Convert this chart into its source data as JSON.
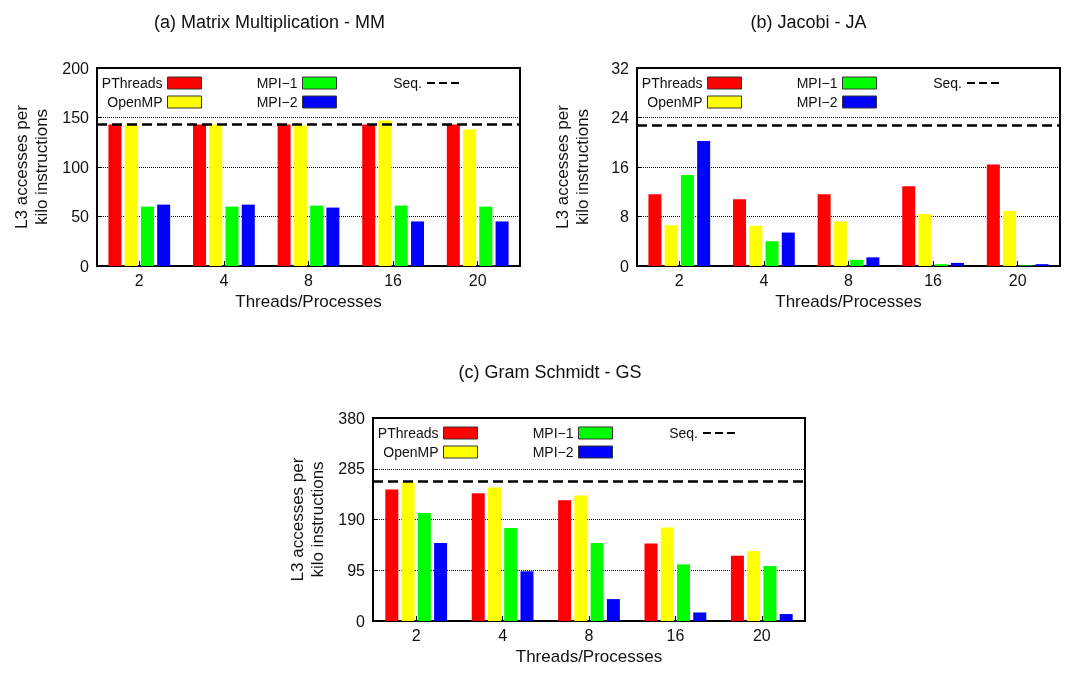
{
  "chart_data": [
    {
      "type": "bar",
      "title": "(a) Matrix Multiplication - MM",
      "xlabel": "Threads/Processes",
      "ylabel": "L3 accesses per\nkilo instructions",
      "categories": [
        "2",
        "4",
        "8",
        "16",
        "20"
      ],
      "series": [
        {
          "name": "PThreads",
          "color": "#ff0000",
          "values": [
            143,
            143,
            143,
            143,
            143
          ]
        },
        {
          "name": "OpenMP",
          "color": "#ffff00",
          "values": [
            143,
            143,
            142,
            147,
            138
          ]
        },
        {
          "name": "MPI−1",
          "color": "#00ff00",
          "values": [
            60,
            60,
            61,
            61,
            60
          ]
        },
        {
          "name": "MPI−2",
          "color": "#0000ff",
          "values": [
            62,
            62,
            59,
            45,
            45
          ]
        }
      ],
      "ref_lines": [
        {
          "axis": "y",
          "value": 143,
          "label": "Seq.",
          "color": "#000000",
          "line_style": "dashed"
        }
      ],
      "ylim": [
        0,
        200
      ],
      "yticks": [
        0,
        50,
        100,
        150,
        200
      ],
      "grid": "y",
      "legend": "top"
    },
    {
      "type": "bar",
      "title": "(b) Jacobi - JA",
      "xlabel": "Threads/Processes",
      "ylabel": "L3 accesses per\nkilo instructions",
      "categories": [
        "2",
        "4",
        "8",
        "16",
        "20"
      ],
      "series": [
        {
          "name": "PThreads",
          "color": "#ff0000",
          "values": [
            11.6,
            10.8,
            11.6,
            12.9,
            16.4
          ]
        },
        {
          "name": "OpenMP",
          "color": "#ffff00",
          "values": [
            6.6,
            6.5,
            7.2,
            8.4,
            8.9
          ]
        },
        {
          "name": "MPI−1",
          "color": "#00ff00",
          "values": [
            14.7,
            4.0,
            1.0,
            0.3,
            0.1
          ]
        },
        {
          "name": "MPI−2",
          "color": "#0000ff",
          "values": [
            20.2,
            5.4,
            1.4,
            0.5,
            0.3
          ]
        }
      ],
      "ref_lines": [
        {
          "axis": "y",
          "value": 22.8,
          "label": "Seq.",
          "color": "#000000",
          "line_style": "dashed"
        }
      ],
      "ylim": [
        0,
        32
      ],
      "yticks": [
        0,
        8,
        16,
        24,
        32
      ],
      "grid": "y",
      "legend": "top"
    },
    {
      "type": "bar",
      "title": "(c) Gram Schmidt - GS",
      "xlabel": "Threads/Processes",
      "ylabel": "L3 accesses per\nkilo instructions",
      "categories": [
        "2",
        "4",
        "8",
        "16",
        "20"
      ],
      "series": [
        {
          "name": "PThreads",
          "color": "#ff0000",
          "values": [
            246,
            239,
            226,
            145,
            122
          ]
        },
        {
          "name": "OpenMP",
          "color": "#ffff00",
          "values": [
            259,
            250,
            235,
            175,
            131
          ]
        },
        {
          "name": "MPI−1",
          "color": "#00ff00",
          "values": [
            202,
            174,
            146,
            106,
            103
          ]
        },
        {
          "name": "MPI−2",
          "color": "#0000ff",
          "values": [
            146,
            93,
            41,
            16,
            13
          ]
        }
      ],
      "ref_lines": [
        {
          "axis": "y",
          "value": 262,
          "label": "Seq.",
          "color": "#000000",
          "line_style": "dashed"
        }
      ],
      "ylim": [
        0,
        380
      ],
      "yticks": [
        0,
        95,
        190,
        285,
        380
      ],
      "grid": "y",
      "legend": "top"
    }
  ]
}
